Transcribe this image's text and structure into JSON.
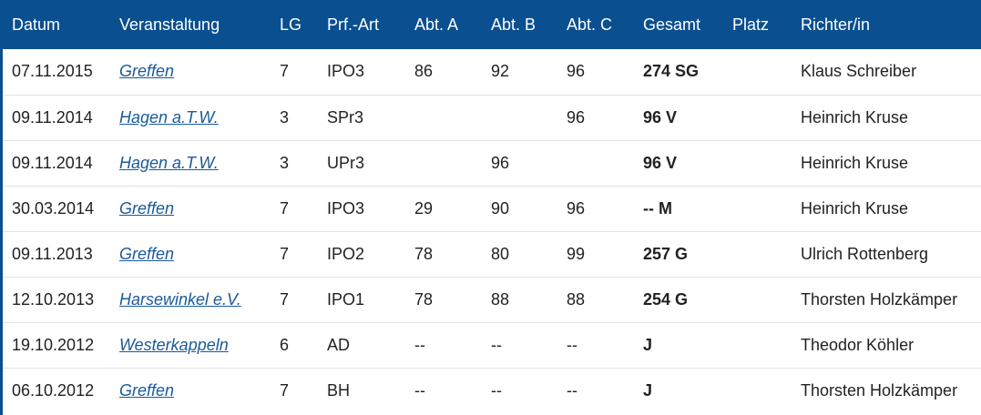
{
  "table": {
    "headers": {
      "datum": "Datum",
      "veranstaltung": "Veranstaltung",
      "lg": "LG",
      "pruefungsart": "Prf.-Art",
      "abt_a": "Abt. A",
      "abt_b": "Abt. B",
      "abt_c": "Abt. C",
      "gesamt": "Gesamt",
      "platz": "Platz",
      "richter": "Richter/in"
    },
    "rows": [
      {
        "datum": "07.11.2015",
        "veranstaltung": "Greffen",
        "lg": "7",
        "pruefungsart": "IPO3",
        "abt_a": "86",
        "abt_b": "92",
        "abt_c": "96",
        "gesamt": "274 SG",
        "platz": "",
        "richter": "Klaus Schreiber"
      },
      {
        "datum": "09.11.2014",
        "veranstaltung": "Hagen a.T.W.",
        "lg": "3",
        "pruefungsart": "SPr3",
        "abt_a": "",
        "abt_b": "",
        "abt_c": "96",
        "gesamt": "96 V",
        "platz": "",
        "richter": "Heinrich Kruse"
      },
      {
        "datum": "09.11.2014",
        "veranstaltung": "Hagen a.T.W.",
        "lg": "3",
        "pruefungsart": "UPr3",
        "abt_a": "",
        "abt_b": "96",
        "abt_c": "",
        "gesamt": "96 V",
        "platz": "",
        "richter": "Heinrich Kruse"
      },
      {
        "datum": "30.03.2014",
        "veranstaltung": "Greffen",
        "lg": "7",
        "pruefungsart": "IPO3",
        "abt_a": "29",
        "abt_b": "90",
        "abt_c": "96",
        "gesamt": "-- M",
        "platz": "",
        "richter": "Heinrich Kruse"
      },
      {
        "datum": "09.11.2013",
        "veranstaltung": "Greffen",
        "lg": "7",
        "pruefungsart": "IPO2",
        "abt_a": "78",
        "abt_b": "80",
        "abt_c": "99",
        "gesamt": "257 G",
        "platz": "",
        "richter": "Ulrich Rottenberg"
      },
      {
        "datum": "12.10.2013",
        "veranstaltung": "Harsewinkel e.V.",
        "lg": "7",
        "pruefungsart": "IPO1",
        "abt_a": "78",
        "abt_b": "88",
        "abt_c": "88",
        "gesamt": "254 G",
        "platz": "",
        "richter": "Thorsten Holzkämper"
      },
      {
        "datum": "19.10.2012",
        "veranstaltung": "Westerkappeln",
        "lg": "6",
        "pruefungsart": "AD",
        "abt_a": "--",
        "abt_b": "--",
        "abt_c": "--",
        "gesamt": "J",
        "platz": "",
        "richter": "Theodor Köhler"
      },
      {
        "datum": "06.10.2012",
        "veranstaltung": "Greffen",
        "lg": "7",
        "pruefungsart": "BH",
        "abt_a": "--",
        "abt_b": "--",
        "abt_c": "--",
        "gesamt": "J",
        "platz": "",
        "richter": "Thorsten Holzkämper"
      }
    ]
  },
  "colors": {
    "header_bg": "#0a4f8f",
    "header_text": "#ffffff",
    "link": "#1a5a9a",
    "row_divider": "#e2e2e2"
  }
}
